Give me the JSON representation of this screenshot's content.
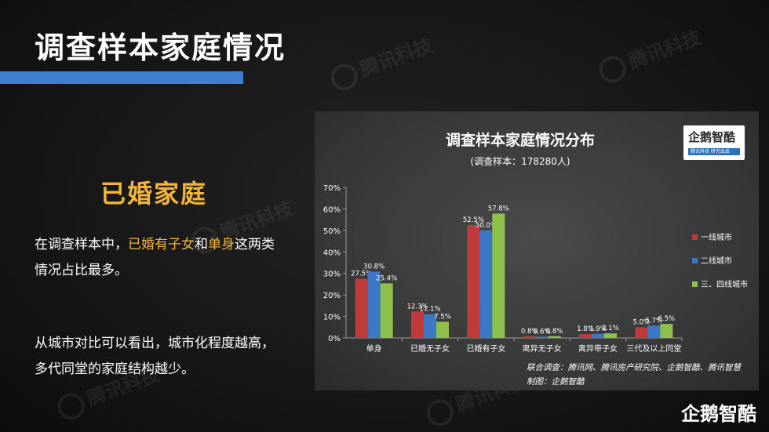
{
  "slide": {
    "title": "调查样本家庭情况",
    "watermark": "腾讯科技",
    "subheading": "已婚家庭",
    "para1": {
      "pre": "在调查样本中，",
      "hl1": "已婚有子女",
      "mid": "和",
      "hl2": "单身",
      "post": "这两类",
      "line2": "情况占比最多。"
    },
    "para2": {
      "line1": "从城市对比可以看出，城市化程度越高，",
      "line2": "多代同堂的家庭结构越少。"
    },
    "footer_logo": "企鹅智酷",
    "colors": {
      "accent_bar": "#3f7fcf",
      "highlight": "#f2b43a"
    }
  },
  "chart_badge": {
    "name": "企鹅智酷",
    "strip": "腾讯科技 研究出品"
  },
  "chart_data": {
    "type": "bar",
    "title": "调查样本家庭情况分布",
    "subtitle": "(调查样本：178280人)",
    "categories": [
      "单身",
      "已婚无子女",
      "已婚有子女",
      "离异无子女",
      "离异带子女",
      "三代及以上同堂"
    ],
    "series": [
      {
        "name": "一线城市",
        "color": "#c0393b",
        "values": [
          27.5,
          12.3,
          52.5,
          0.8,
          1.8,
          5.0
        ],
        "labels": [
          "27.5%",
          "12.3%",
          "52.5%",
          "0.8%",
          "1.8%",
          "5.0%"
        ]
      },
      {
        "name": "二线城市",
        "color": "#3d78c6",
        "values": [
          30.8,
          11.1,
          50.0,
          0.6,
          1.9,
          5.7
        ],
        "labels": [
          "30.8%",
          "11.1%",
          "50.0%",
          "0.6%",
          "1.9%",
          "5.7%"
        ]
      },
      {
        "name": "三、四线城市",
        "color": "#8ec04a",
        "values": [
          25.4,
          7.5,
          57.8,
          0.8,
          2.1,
          6.5
        ],
        "labels": [
          "25.4%",
          "7.5%",
          "57.8%",
          "0.8%",
          "2.1%",
          "6.5%"
        ]
      }
    ],
    "ylim": [
      0,
      70
    ],
    "yticks": [
      "0%",
      "10%",
      "20%",
      "30%",
      "40%",
      "50%",
      "60%",
      "70%"
    ],
    "legend_position": "right",
    "grid": false,
    "source_line1": "联合调查：腾讯网、腾讯房产研究院、企鹅智酷、腾讯智慧",
    "source_line2": "制图：企鹅智酷"
  }
}
